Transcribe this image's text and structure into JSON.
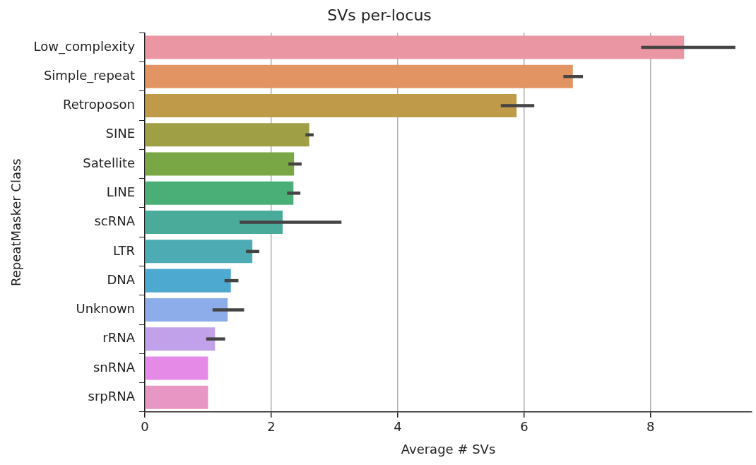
{
  "chart_data": {
    "type": "bar",
    "orientation": "horizontal",
    "title": "SVs per-locus",
    "xlabel": "Average # SVs",
    "ylabel": "RepeatMasker Class",
    "categories": [
      "Low_complexity",
      "Simple_repeat",
      "Retroposon",
      "SINE",
      "Satellite",
      "LINE",
      "scRNA",
      "LTR",
      "DNA",
      "Unknown",
      "rRNA",
      "snRNA",
      "srpRNA"
    ],
    "values": [
      8.53,
      6.77,
      5.88,
      2.6,
      2.36,
      2.35,
      2.18,
      1.7,
      1.36,
      1.31,
      1.11,
      1.0,
      1.0
    ],
    "errors": [
      [
        7.85,
        9.34
      ],
      [
        6.62,
        6.93
      ],
      [
        5.63,
        6.16
      ],
      [
        2.54,
        2.67
      ],
      [
        2.27,
        2.48
      ],
      [
        2.25,
        2.46
      ],
      [
        1.5,
        3.11
      ],
      [
        1.6,
        1.81
      ],
      [
        1.26,
        1.48
      ],
      [
        1.07,
        1.57
      ],
      [
        0.97,
        1.27
      ],
      null,
      null
    ],
    "colors": [
      "#ea96a3",
      "#e39463",
      "#bf9a49",
      "#9f9f45",
      "#7aa745",
      "#4aaf76",
      "#4aab9b",
      "#4dabb4",
      "#4ea9d0",
      "#8cacea",
      "#c0a1ea",
      "#e68ae8",
      "#e896c4"
    ],
    "xlim": [
      0,
      9.6
    ],
    "xticks": [
      0,
      2,
      4,
      6,
      8
    ],
    "grid": "x",
    "legend": false
  }
}
